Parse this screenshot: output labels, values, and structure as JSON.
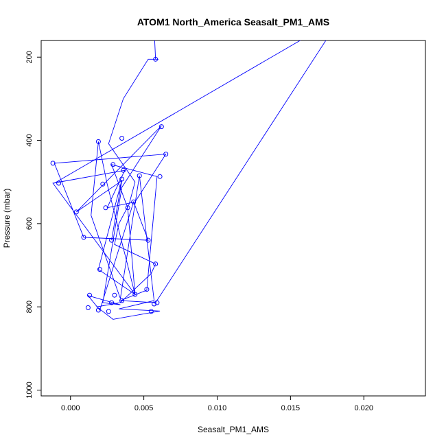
{
  "chart_data": {
    "type": "line",
    "title": "ATOM1 North_America Seasalt_PM1_AMS",
    "xlabel": "Seasalt_PM1_AMS",
    "ylabel": "Pressure (mbar)",
    "xlim": [
      -0.002,
      0.0242
    ],
    "ylim": [
      1014,
      160
    ],
    "y_reversed": true,
    "grid": false,
    "legend": "none",
    "x_ticks": [
      0.0,
      0.005,
      0.01,
      0.015,
      0.02
    ],
    "x_tick_labels": [
      "0.000",
      "0.005",
      "0.010",
      "0.015",
      "0.020"
    ],
    "y_ticks": [
      200,
      400,
      600,
      800,
      1000
    ],
    "y_tick_labels": [
      "200",
      "400",
      "600",
      "800",
      "1000"
    ],
    "series_color": "#0000ff",
    "series": [
      {
        "x": [
          0.0057,
          0.0058,
          0.006,
          0.0053,
          0.0036,
          0.0026,
          0.0044,
          0.004,
          0.0033,
          0.003,
          0.0058,
          0.0055,
          0.0034,
          0.0018,
          0.0029,
          0.0061,
          0.0033,
          0.0057,
          0.0047,
          0.0034,
          0.0014,
          0.0019,
          0.0025,
          0.0044,
          0.0019,
          0.0035,
          0.0028,
          0.0035,
          0.0004,
          0.0062,
          0.0035,
          0.0022,
          0.0034,
          0.0012,
          0.002,
          0.0043,
          0.0053,
          0.0009,
          -0.0011,
          0.0065,
          0.0044,
          0.0025,
          0.0037,
          -0.0012,
          0.0044,
          0.0039,
          0.0028,
          0.0059,
          0.0052,
          0.0034,
          0.0058,
          0.0175
        ],
        "y": [
          130,
          205,
          205,
          205,
          300,
          408,
          500,
          553,
          600,
          650,
          697,
          720,
          790,
          800,
          830,
          810,
          805,
          785,
          485,
          780,
          580,
          403,
          505,
          770,
          710,
          495,
          640,
          497,
          572,
          365,
          513,
          790,
          795,
          773,
          808,
          548,
          640,
          633,
          455,
          433,
          548,
          562,
          472,
          503,
          770,
          562,
          458,
          487,
          760,
          785,
          790,
          155
        ]
      },
      {
        "x": [
          0.0159,
          -0.0011
        ],
        "y": [
          155,
          503
        ]
      }
    ],
    "markers": {
      "x": [
        0.0058,
        0.0062,
        0.0065,
        0.0061,
        0.0047,
        0.0019,
        0.0035,
        0.0036,
        0.0029,
        -0.0012,
        -0.0008,
        0.0022,
        0.0035,
        0.0004,
        0.0024,
        0.0043,
        0.0039,
        0.0009,
        0.0028,
        0.0053,
        0.0058,
        0.002,
        0.0052,
        0.0044,
        0.0013,
        0.003,
        0.0035,
        0.0028,
        0.0059,
        0.0057,
        0.0012,
        0.0019,
        0.0026,
        0.0055
      ],
      "y": [
        205,
        367,
        433,
        487,
        485,
        403,
        395,
        472,
        458,
        455,
        503,
        505,
        493,
        572,
        562,
        548,
        562,
        633,
        640,
        640,
        697,
        710,
        758,
        770,
        772,
        772,
        785,
        790,
        790,
        793,
        802,
        808,
        811,
        811
      ]
    }
  }
}
